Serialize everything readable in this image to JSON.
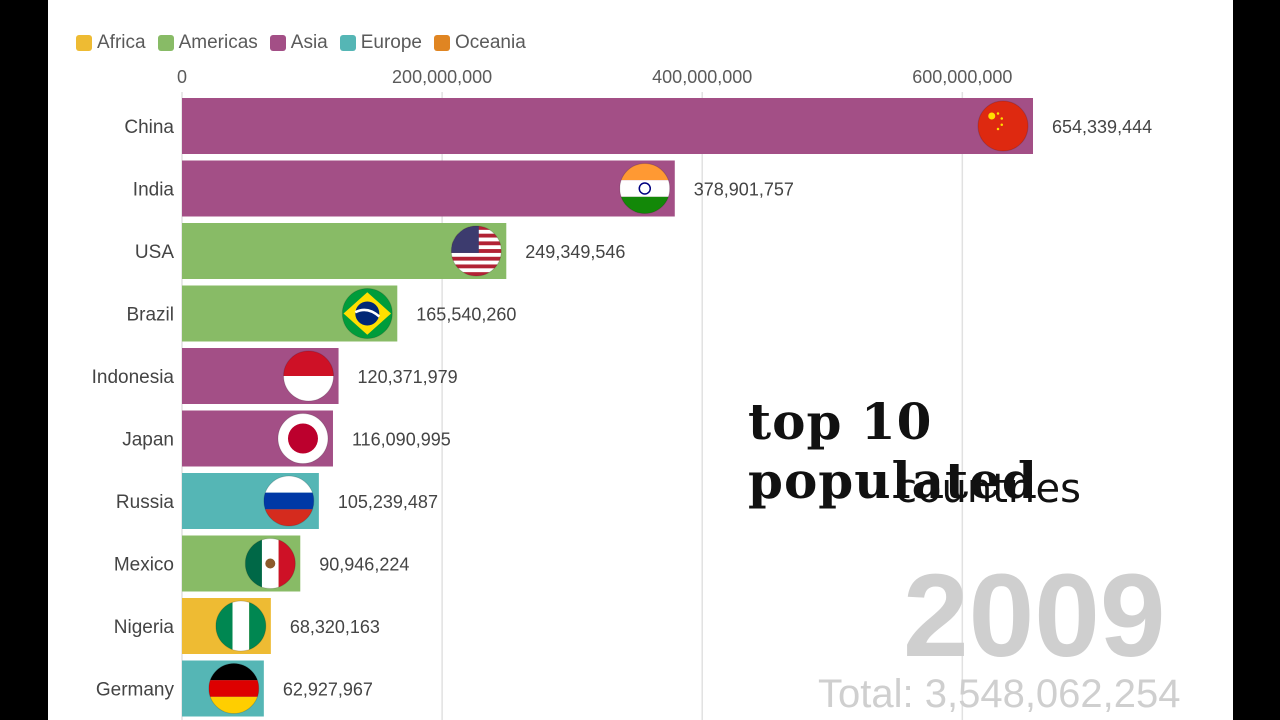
{
  "overlay": {
    "title_main": "top 10 populated",
    "title_sub": "countries",
    "year": "2009",
    "total": "Total: 3,548,062,254"
  },
  "colors": {
    "Africa": "#eebb33",
    "Americas": "#88bb66",
    "Asia": "#a34f86",
    "Europe": "#55b6b5",
    "Oceania": "#e08522",
    "grid": "#e1e1e1"
  },
  "chart_data": {
    "type": "bar",
    "orientation": "horizontal",
    "legend": [
      "Africa",
      "Americas",
      "Asia",
      "Europe",
      "Oceania"
    ],
    "legend_position": "top-left",
    "x_ticks": [
      0,
      200000000,
      400000000,
      600000000
    ],
    "x_tick_labels": [
      "0",
      "200,000,000",
      "400,000,000",
      "600,000,000"
    ],
    "xlim": [
      0,
      654339444
    ],
    "grid": true,
    "bars": [
      {
        "label": "China",
        "value": 654339444,
        "value_label": "654,339,444",
        "region": "Asia",
        "flag": "china-flag-icon"
      },
      {
        "label": "India",
        "value": 378901757,
        "value_label": "378,901,757",
        "region": "Asia",
        "flag": "india-flag-icon"
      },
      {
        "label": "USA",
        "value": 249349546,
        "value_label": "249,349,546",
        "region": "Americas",
        "flag": "usa-flag-icon"
      },
      {
        "label": "Brazil",
        "value": 165540260,
        "value_label": "165,540,260",
        "region": "Americas",
        "flag": "brazil-flag-icon"
      },
      {
        "label": "Indonesia",
        "value": 120371979,
        "value_label": "120,371,979",
        "region": "Asia",
        "flag": "indonesia-flag-icon"
      },
      {
        "label": "Japan",
        "value": 116090995,
        "value_label": "116,090,995",
        "region": "Asia",
        "flag": "japan-flag-icon"
      },
      {
        "label": "Russia",
        "value": 105239487,
        "value_label": "105,239,487",
        "region": "Europe",
        "flag": "russia-flag-icon"
      },
      {
        "label": "Mexico",
        "value": 90946224,
        "value_label": "90,946,224",
        "region": "Americas",
        "flag": "mexico-flag-icon"
      },
      {
        "label": "Nigeria",
        "value": 68320163,
        "value_label": "68,320,163",
        "region": "Africa",
        "flag": "nigeria-flag-icon"
      },
      {
        "label": "Germany",
        "value": 62927967,
        "value_label": "62,927,967",
        "region": "Europe",
        "flag": "germany-flag-icon"
      }
    ]
  }
}
